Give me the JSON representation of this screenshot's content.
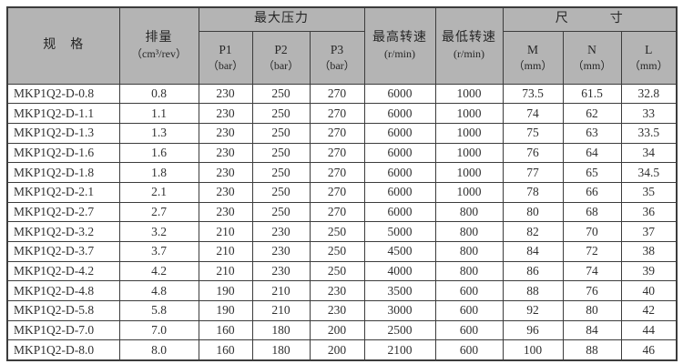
{
  "table": {
    "header": {
      "spec": "规　格",
      "displacement_title": "排量",
      "displacement_unit": "（cm³/rev）",
      "max_pressure": "最大压力",
      "p1_title": "P1",
      "p1_unit": "（bar）",
      "p2_title": "P2",
      "p2_unit": "（bar）",
      "p3_title": "P3",
      "p3_unit": "（bar）",
      "max_speed_title": "最高转速",
      "max_speed_unit": "(r/min)",
      "min_speed_title": "最低转速",
      "min_speed_unit": "(r/min)",
      "dimensions": "尺　　　寸",
      "m_title": "M",
      "m_unit": "（mm）",
      "n_title": "N",
      "n_unit": "（mm）",
      "l_title": "L",
      "l_unit": "（mm）"
    },
    "rows": [
      [
        "MKP1Q2-D-0.8",
        "0.8",
        "230",
        "250",
        "270",
        "6000",
        "1000",
        "73.5",
        "61.5",
        "32.8"
      ],
      [
        "MKP1Q2-D-1.1",
        "1.1",
        "230",
        "250",
        "270",
        "6000",
        "1000",
        "74",
        "62",
        "33"
      ],
      [
        "MKP1Q2-D-1.3",
        "1.3",
        "230",
        "250",
        "270",
        "6000",
        "1000",
        "75",
        "63",
        "33.5"
      ],
      [
        "MKP1Q2-D-1.6",
        "1.6",
        "230",
        "250",
        "270",
        "6000",
        "1000",
        "76",
        "64",
        "34"
      ],
      [
        "MKP1Q2-D-1.8",
        "1.8",
        "230",
        "250",
        "270",
        "6000",
        "1000",
        "77",
        "65",
        "34.5"
      ],
      [
        "MKP1Q2-D-2.1",
        "2.1",
        "230",
        "250",
        "270",
        "6000",
        "1000",
        "78",
        "66",
        "35"
      ],
      [
        "MKP1Q2-D-2.7",
        "2.7",
        "230",
        "250",
        "270",
        "6000",
        "800",
        "80",
        "68",
        "36"
      ],
      [
        "MKP1Q2-D-3.2",
        "3.2",
        "210",
        "230",
        "250",
        "5000",
        "800",
        "82",
        "70",
        "37"
      ],
      [
        "MKP1Q2-D-3.7",
        "3.7",
        "210",
        "230",
        "250",
        "4500",
        "800",
        "84",
        "72",
        "38"
      ],
      [
        "MKP1Q2-D-4.2",
        "4.2",
        "210",
        "230",
        "250",
        "4000",
        "800",
        "86",
        "74",
        "39"
      ],
      [
        "MKP1Q2-D-4.8",
        "4.8",
        "190",
        "210",
        "230",
        "3500",
        "600",
        "88",
        "76",
        "40"
      ],
      [
        "MKP1Q2-D-5.8",
        "5.8",
        "190",
        "210",
        "230",
        "3000",
        "600",
        "92",
        "80",
        "42"
      ],
      [
        "MKP1Q2-D-7.0",
        "7.0",
        "160",
        "180",
        "200",
        "2500",
        "600",
        "96",
        "84",
        "44"
      ],
      [
        "MKP1Q2-D-8.0",
        "8.0",
        "160",
        "180",
        "200",
        "2100",
        "600",
        "100",
        "88",
        "46"
      ]
    ]
  },
  "colors": {
    "header_bg": "#b4b4b4",
    "border": "#3c3c3c",
    "text": "#303030"
  }
}
